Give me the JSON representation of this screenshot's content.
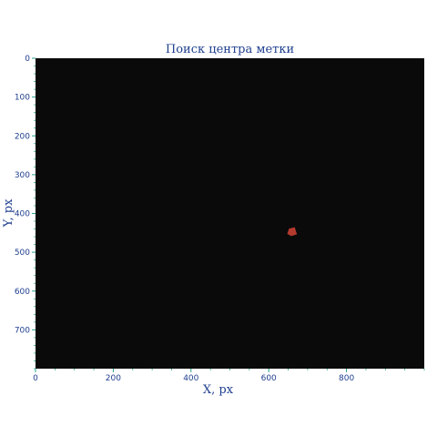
{
  "chart_data": {
    "type": "scatter",
    "title": "Поиск центра метки",
    "xlabel": "X, px",
    "ylabel": "Y, px",
    "xlim": [
      0,
      1000
    ],
    "ylim": [
      800,
      0
    ],
    "x_ticks": [
      0,
      200,
      400,
      600,
      800
    ],
    "y_ticks": [
      0,
      100,
      200,
      300,
      400,
      500,
      600,
      700
    ],
    "grid": false,
    "background_color": "#0a0a0a",
    "marker": {
      "name": "",
      "color": "#b33a2e",
      "polygon": [
        [
          653,
          440
        ],
        [
          666,
          437
        ],
        [
          671,
          453
        ],
        [
          658,
          457
        ],
        [
          649,
          452
        ]
      ],
      "center": [
        660,
        449
      ]
    }
  }
}
